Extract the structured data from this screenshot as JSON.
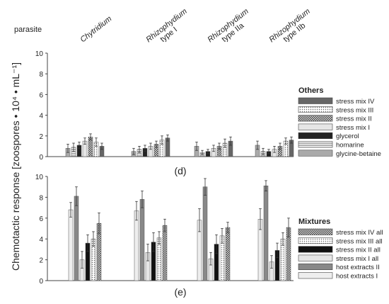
{
  "chart_data": [
    {
      "type": "bar",
      "panel_label": "(d)",
      "group_header": "parasite",
      "categories": [
        "Chytridium",
        "Rhizophydium type I",
        "Rhizophydium type IIa",
        "Rhizophydium type IIb"
      ],
      "ylim": [
        0,
        10
      ],
      "yticks": [
        0,
        2,
        4,
        6,
        8,
        10
      ],
      "legend_title": "Others",
      "legend_position": "right",
      "grid": false,
      "series": [
        {
          "name": "glycine-betaine",
          "values": [
            0.8,
            0.5,
            1.0,
            1.1
          ],
          "errors": [
            0.4,
            0.3,
            0.4,
            0.4
          ],
          "fill": "#aaaaaa",
          "pattern": "none"
        },
        {
          "name": "homarine",
          "values": [
            0.9,
            0.7,
            0.4,
            0.5
          ],
          "errors": [
            0.4,
            0.3,
            0.2,
            0.3
          ],
          "fill": "#ffffff",
          "pattern": "hlines"
        },
        {
          "name": "glycerol",
          "values": [
            1.1,
            0.8,
            0.5,
            0.5
          ],
          "errors": [
            0.3,
            0.3,
            0.2,
            0.2
          ],
          "fill": "#222222",
          "pattern": "none"
        },
        {
          "name": "stress mix I",
          "values": [
            1.5,
            1.0,
            0.8,
            0.7
          ],
          "errors": [
            0.3,
            0.3,
            0.3,
            0.3
          ],
          "fill": "#e6e6e6",
          "pattern": "none"
        },
        {
          "name": "stress mix II",
          "values": [
            1.9,
            1.2,
            1.0,
            1.0
          ],
          "errors": [
            0.3,
            0.3,
            0.3,
            0.3
          ],
          "fill": "#bbbbbb",
          "pattern": "checker"
        },
        {
          "name": "stress mix III",
          "values": [
            1.4,
            1.6,
            1.3,
            1.5
          ],
          "errors": [
            0.4,
            0.4,
            0.4,
            0.3
          ],
          "fill": "#ffffff",
          "pattern": "dots"
        },
        {
          "name": "stress mix IV",
          "values": [
            1.0,
            1.8,
            1.5,
            1.6
          ],
          "errors": [
            0.3,
            0.3,
            0.4,
            0.3
          ],
          "fill": "#666666",
          "pattern": "none"
        }
      ]
    },
    {
      "type": "bar",
      "panel_label": "(e)",
      "categories": [
        "Chytridium",
        "Rhizophydium type I",
        "Rhizophydium type IIa",
        "Rhizophydium type IIb"
      ],
      "ylim": [
        0,
        10
      ],
      "yticks": [
        0,
        2,
        4,
        6,
        8,
        10
      ],
      "legend_title": "Mixtures",
      "legend_position": "right",
      "grid": false,
      "series": [
        {
          "name": "host extracts I",
          "values": [
            6.8,
            6.7,
            5.8,
            5.9
          ],
          "errors": [
            0.7,
            0.9,
            1.1,
            1.0
          ],
          "fill": "#eeeeee",
          "pattern": "none"
        },
        {
          "name": "host extracts II",
          "values": [
            8.1,
            7.8,
            9.0,
            9.1
          ],
          "errors": [
            0.9,
            0.8,
            0.8,
            0.5
          ],
          "fill": "#888888",
          "pattern": "none"
        },
        {
          "name": "stress mix I all",
          "values": [
            2.0,
            2.7,
            2.1,
            1.8
          ],
          "errors": [
            0.8,
            0.8,
            0.6,
            0.6
          ],
          "fill": "#e6e6e6",
          "pattern": "none"
        },
        {
          "name": "stress mix II all",
          "values": [
            3.6,
            3.7,
            3.5,
            2.9
          ],
          "errors": [
            0.8,
            0.9,
            0.9,
            0.7
          ],
          "fill": "#111111",
          "pattern": "none"
        },
        {
          "name": "stress mix III all",
          "values": [
            4.0,
            4.1,
            4.3,
            4.0
          ],
          "errors": [
            0.7,
            0.6,
            0.7,
            0.6
          ],
          "fill": "#ffffff",
          "pattern": "dots"
        },
        {
          "name": "stress mix IV all",
          "values": [
            5.5,
            5.3,
            5.1,
            5.1
          ],
          "errors": [
            1.0,
            0.6,
            0.5,
            0.9
          ],
          "fill": "#bbbbbb",
          "pattern": "checker"
        }
      ]
    }
  ],
  "ylabel": "Chemotactic response [zoospores • 10⁴ • mL⁻¹]"
}
